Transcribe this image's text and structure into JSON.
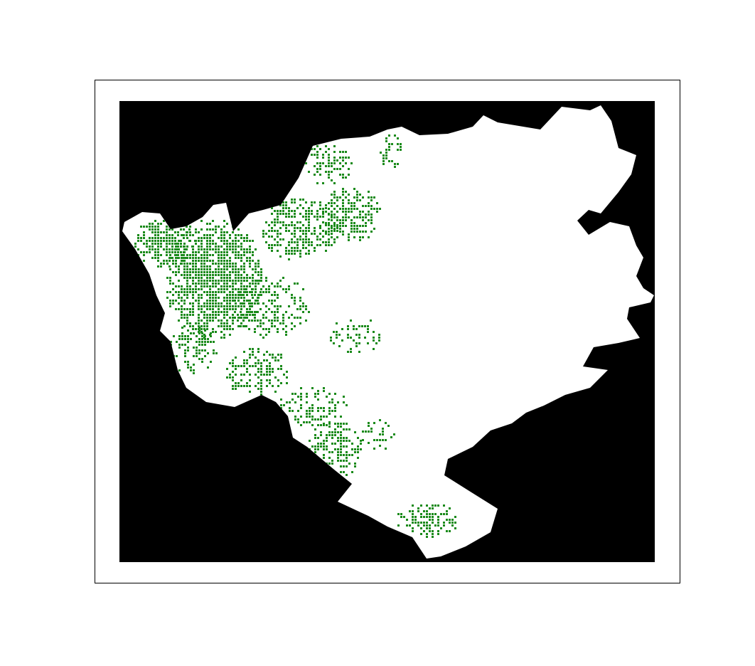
{
  "map": {
    "background_color": "#000000",
    "land_color": "#ffffff",
    "vegetation_color": "#1a8a1a",
    "frame_color": "#000000"
  }
}
